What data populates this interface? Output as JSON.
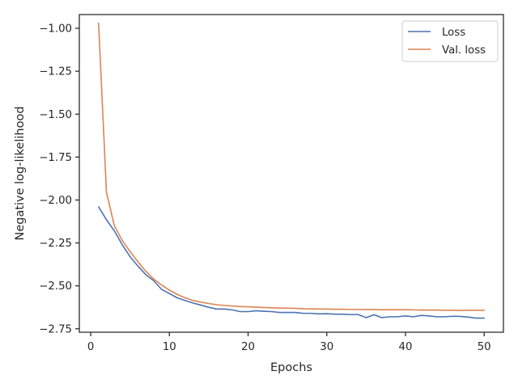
{
  "chart_data": {
    "type": "line",
    "title": "",
    "xlabel": "Epochs",
    "ylabel": "Negative log-likelihood",
    "xlim": [
      -1.45,
      52.45
    ],
    "ylim": [
      -2.77,
      -0.92
    ],
    "xticks": [
      0,
      10,
      20,
      30,
      40,
      50
    ],
    "xtick_labels": [
      "0",
      "10",
      "20",
      "30",
      "40",
      "50"
    ],
    "yticks": [
      -1.0,
      -1.25,
      -1.5,
      -1.75,
      -2.0,
      -2.25,
      -2.5,
      -2.75
    ],
    "ytick_labels": [
      "−1.00",
      "−1.25",
      "−1.50",
      "−1.75",
      "−2.00",
      "−2.25",
      "−2.50",
      "−2.75"
    ],
    "grid": false,
    "legend_position": "top-right",
    "x": [
      1,
      2,
      3,
      4,
      5,
      6,
      7,
      8,
      9,
      10,
      11,
      12,
      13,
      14,
      15,
      16,
      17,
      18,
      19,
      20,
      21,
      22,
      23,
      24,
      25,
      26,
      27,
      28,
      29,
      30,
      31,
      32,
      33,
      34,
      35,
      36,
      37,
      38,
      39,
      40,
      41,
      42,
      43,
      44,
      45,
      46,
      47,
      48,
      49,
      50
    ],
    "series": [
      {
        "name": "Loss",
        "color": "#4c72b0",
        "values": [
          -2.04,
          -2.115,
          -2.18,
          -2.26,
          -2.33,
          -2.385,
          -2.435,
          -2.47,
          -2.52,
          -2.545,
          -2.57,
          -2.585,
          -2.6,
          -2.612,
          -2.625,
          -2.635,
          -2.635,
          -2.64,
          -2.65,
          -2.65,
          -2.645,
          -2.648,
          -2.65,
          -2.655,
          -2.655,
          -2.655,
          -2.66,
          -2.66,
          -2.663,
          -2.662,
          -2.665,
          -2.665,
          -2.667,
          -2.667,
          -2.685,
          -2.668,
          -2.685,
          -2.68,
          -2.68,
          -2.675,
          -2.68,
          -2.672,
          -2.675,
          -2.68,
          -2.68,
          -2.677,
          -2.678,
          -2.682,
          -2.688,
          -2.688
        ]
      },
      {
        "name": "Val. loss",
        "color": "#dd8452",
        "values": [
          -0.97,
          -1.955,
          -2.15,
          -2.235,
          -2.3,
          -2.36,
          -2.415,
          -2.46,
          -2.495,
          -2.525,
          -2.55,
          -2.57,
          -2.585,
          -2.595,
          -2.603,
          -2.61,
          -2.614,
          -2.617,
          -2.62,
          -2.622,
          -2.624,
          -2.626,
          -2.628,
          -2.629,
          -2.63,
          -2.631,
          -2.633,
          -2.634,
          -2.635,
          -2.635,
          -2.636,
          -2.636,
          -2.637,
          -2.637,
          -2.638,
          -2.638,
          -2.639,
          -2.639,
          -2.639,
          -2.639,
          -2.64,
          -2.641,
          -2.641,
          -2.641,
          -2.642,
          -2.642,
          -2.643,
          -2.642,
          -2.642,
          -2.642
        ]
      }
    ]
  }
}
